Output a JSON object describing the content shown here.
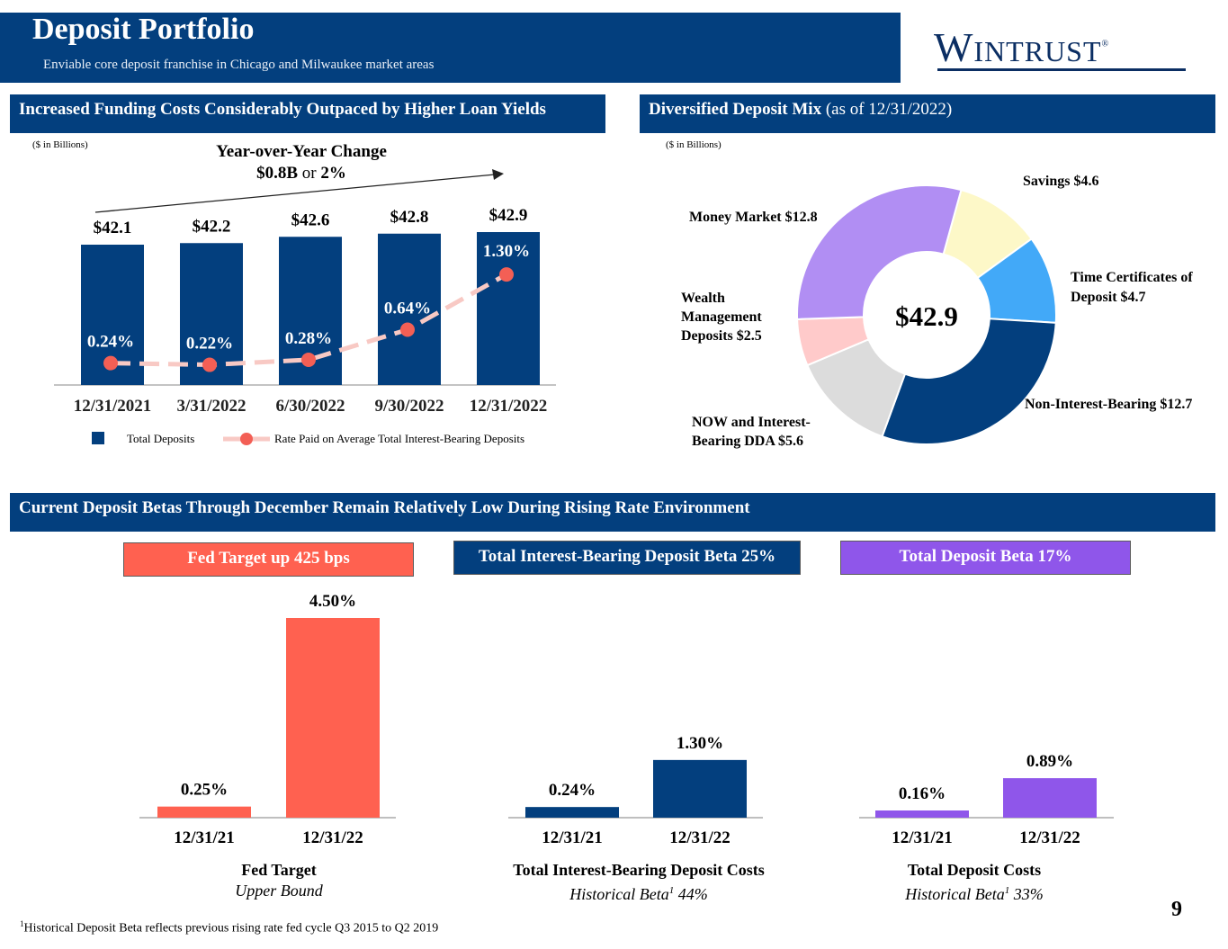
{
  "header": {
    "title": "Deposit Portfolio",
    "subtitle": "Enviable core deposit franchise in Chicago and Milwaukee market areas",
    "logo_text": "Wintrust",
    "logo_mark": "®"
  },
  "left_section": {
    "title": "Increased Funding Costs Considerably Outpaced by Higher Loan Yields",
    "unit_note": "($ in Billions)",
    "yoy_title": "Year-over-Year Change",
    "yoy_amount": "$0.8B",
    "yoy_or": "or",
    "yoy_pct": "2%"
  },
  "right_section": {
    "title": "Diversified Deposit Mix",
    "title_suffix": "(as of 12/31/2022)",
    "unit_note": "($ in Billions)",
    "center_label": "$42.9"
  },
  "bottom_section": {
    "title": "Current Deposit Betas Through December Remain Relatively Low During Rising Rate Environment",
    "pills": {
      "fed": "Fed Target up 425 bps",
      "interest_bearing": "Total Interest-Bearing Deposit Beta 25%",
      "total": "Total Deposit Beta 17%"
    },
    "captions": {
      "fed_title": "Fed Target",
      "fed_sub": "Upper Bound",
      "ib_title": "Total Interest-Bearing Deposit Costs",
      "ib_sub_prefix": "Historical Beta",
      "ib_sub_sup": "1",
      "ib_sub_value": " 44%",
      "td_title": "Total Deposit Costs",
      "td_sub_prefix": "Historical Beta",
      "td_sub_sup": "1",
      "td_sub_value": " 33%"
    }
  },
  "footnote": {
    "sup": "1",
    "text": "Historical Deposit Beta reflects previous rising rate fed cycle Q3 2015 to Q2 2019"
  },
  "page_number": "9",
  "colors": {
    "navy": "#033f7e",
    "red": "#ff6150",
    "purple": "#8f56ea",
    "line_dash": "#f8c9c4",
    "dot": "#f35f55"
  },
  "chart_data": [
    {
      "id": "deposits_combo",
      "type": "bar",
      "title": "Increased Funding Costs Considerably Outpaced by Higher Loan Yields",
      "categories": [
        "12/31/2021",
        "3/31/2022",
        "6/30/2022",
        "9/30/2022",
        "12/31/2022"
      ],
      "series": [
        {
          "name": "Total Deposits",
          "type": "bar",
          "values": [
            42.1,
            42.2,
            42.6,
            42.8,
            42.9
          ],
          "labels": [
            "$42.1",
            "$42.2",
            "$42.6",
            "$42.8",
            "$42.9"
          ]
        },
        {
          "name": "Rate Paid on Average Total Interest-Bearing Deposits",
          "type": "line",
          "values": [
            0.24,
            0.22,
            0.28,
            0.64,
            1.3
          ],
          "labels": [
            "0.24%",
            "0.22%",
            "0.28%",
            "0.64%",
            "1.30%"
          ]
        }
      ],
      "legend": [
        "Total Deposits",
        "Rate Paid on Average Total Interest-Bearing Deposits"
      ],
      "legend_position": "bottom"
    },
    {
      "id": "deposit_mix",
      "type": "pie",
      "title": "Diversified Deposit Mix",
      "total": 42.9,
      "slices": [
        {
          "name": "Savings",
          "value": 4.6,
          "label": "Savings $4.6",
          "color": "#fdf8c8"
        },
        {
          "name": "Time Certificates of Deposit",
          "value": 4.7,
          "label_line1": "Time Certificates of",
          "label_line2": "Deposit $4.7",
          "color": "#42a9f8"
        },
        {
          "name": "Non-Interest-Bearing",
          "value": 12.7,
          "label": "Non-Interest-Bearing  $12.7",
          "color": "#033f7e"
        },
        {
          "name": "NOW and Interest-Bearing DDA",
          "value": 5.6,
          "label_line1": "NOW and Interest-",
          "label_line2": "Bearing DDA $5.6",
          "color": "#dcdcdc"
        },
        {
          "name": "Wealth Management Deposits",
          "value": 2.5,
          "label_line1": "Wealth",
          "label_line2": "Management",
          "label_line3": "Deposits $2.5",
          "color": "#ffcaca"
        },
        {
          "name": "Money Market",
          "value": 12.8,
          "label": "Money Market $12.8",
          "color": "#b18ef3"
        }
      ]
    },
    {
      "id": "fed_target",
      "type": "bar",
      "categories": [
        "12/31/21",
        "12/31/22"
      ],
      "values": [
        0.25,
        4.5
      ],
      "labels": [
        "0.25%",
        "4.50%"
      ],
      "color": "#ff6150",
      "ylim": [
        0,
        4.5
      ]
    },
    {
      "id": "ib_deposit_costs",
      "type": "bar",
      "categories": [
        "12/31/21",
        "12/31/22"
      ],
      "values": [
        0.24,
        1.3
      ],
      "labels": [
        "0.24%",
        "1.30%"
      ],
      "color": "#033f7e",
      "ylim": [
        0,
        4.5
      ]
    },
    {
      "id": "total_deposit_costs",
      "type": "bar",
      "categories": [
        "12/31/21",
        "12/31/22"
      ],
      "values": [
        0.16,
        0.89
      ],
      "labels": [
        "0.16%",
        "0.89%"
      ],
      "color": "#8f56ea",
      "ylim": [
        0,
        4.5
      ]
    }
  ]
}
